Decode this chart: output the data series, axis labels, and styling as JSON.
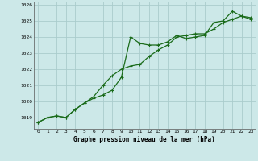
{
  "title": "Graphe pression niveau de la mer (hPa)",
  "bg_color": "#cce8e8",
  "grid_color": "#aacccc",
  "line_color": "#1a6b1a",
  "x_ticks": [
    0,
    1,
    2,
    3,
    4,
    5,
    6,
    7,
    8,
    9,
    10,
    11,
    12,
    13,
    14,
    15,
    16,
    17,
    18,
    19,
    20,
    21,
    22,
    23
  ],
  "ylim": [
    1018.3,
    1026.2
  ],
  "yticks": [
    1019,
    1020,
    1021,
    1022,
    1023,
    1024,
    1025,
    1026
  ],
  "series1": [
    1018.7,
    1019.0,
    1019.1,
    1019.0,
    1019.5,
    1019.9,
    1020.3,
    1021.0,
    1021.6,
    1022.0,
    1022.2,
    1022.3,
    1022.8,
    1023.2,
    1023.5,
    1024.0,
    1024.1,
    1024.2,
    1024.2,
    1024.5,
    1024.9,
    1025.1,
    1025.3,
    1025.2
  ],
  "series2": [
    1018.7,
    1019.0,
    1019.1,
    1019.0,
    1019.5,
    1019.9,
    1020.2,
    1020.4,
    1020.7,
    1021.5,
    1024.0,
    1023.6,
    1023.5,
    1023.5,
    1023.7,
    1024.1,
    1023.9,
    1024.0,
    1024.1,
    1024.9,
    1025.0,
    1025.6,
    1025.3,
    1025.1
  ],
  "title_fontsize": 5.5,
  "tick_fontsize": 4.5
}
